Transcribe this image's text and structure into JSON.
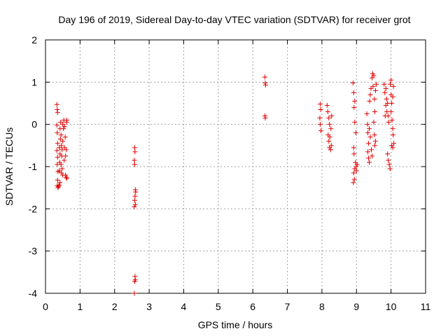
{
  "chart_data": {
    "type": "scatter",
    "title": "Day 196 of 2019, Sidereal Day-to-day VTEC variation (SDTVAR) for receiver grot",
    "xlabel": "GPS time / hours",
    "ylabel": "SDTVAR / TECUs",
    "xlim": [
      0,
      11
    ],
    "ylim": [
      -4,
      2
    ],
    "xticks": [
      0,
      1,
      2,
      3,
      4,
      5,
      6,
      7,
      8,
      9,
      10,
      11
    ],
    "yticks": [
      -4,
      -3,
      -2,
      -1,
      0,
      1,
      2
    ],
    "grid": true,
    "marker": "plus",
    "color": "#e00000",
    "series": [
      {
        "name": "SDTVAR",
        "points": [
          [
            0.33,
            0.47
          ],
          [
            0.34,
            0.35
          ],
          [
            0.35,
            0.28
          ],
          [
            0.33,
            -0.02
          ],
          [
            0.34,
            -0.2
          ],
          [
            0.35,
            -0.45
          ],
          [
            0.33,
            -0.62
          ],
          [
            0.35,
            -0.78
          ],
          [
            0.34,
            -0.95
          ],
          [
            0.36,
            -1.12
          ],
          [
            0.35,
            -1.32
          ],
          [
            0.34,
            -1.45
          ],
          [
            0.36,
            -1.5
          ],
          [
            0.38,
            -1.47
          ],
          [
            0.4,
            -1.44
          ],
          [
            0.42,
            -1.38
          ],
          [
            0.4,
            -1.1
          ],
          [
            0.41,
            -0.9
          ],
          [
            0.42,
            -0.7
          ],
          [
            0.4,
            -0.55
          ],
          [
            0.43,
            -0.35
          ],
          [
            0.42,
            -0.1
          ],
          [
            0.44,
            0.05
          ],
          [
            0.45,
            -0.25
          ],
          [
            0.46,
            -0.5
          ],
          [
            0.47,
            -0.75
          ],
          [
            0.45,
            -0.95
          ],
          [
            0.48,
            -0.6
          ],
          [
            0.5,
            -0.4
          ],
          [
            0.52,
            -0.1
          ],
          [
            0.5,
            0.0
          ],
          [
            0.53,
            0.1
          ],
          [
            0.55,
            -0.05
          ],
          [
            0.57,
            -0.3
          ],
          [
            0.55,
            -0.55
          ],
          [
            0.58,
            -0.75
          ],
          [
            0.6,
            -0.6
          ],
          [
            0.58,
            -1.2
          ],
          [
            0.6,
            -1.25
          ],
          [
            0.62,
            -1.28
          ],
          [
            0.5,
            -1.2
          ],
          [
            0.48,
            -1.05
          ],
          [
            0.46,
            -1.15
          ],
          [
            0.61,
            0.05
          ],
          [
            0.62,
            0.1
          ],
          [
            0.54,
            -0.85
          ],
          [
            2.58,
            -0.55
          ],
          [
            2.59,
            -0.65
          ],
          [
            2.57,
            -0.85
          ],
          [
            2.58,
            -0.95
          ],
          [
            2.6,
            -1.55
          ],
          [
            2.61,
            -1.6
          ],
          [
            2.59,
            -1.7
          ],
          [
            2.58,
            -1.8
          ],
          [
            2.6,
            -1.9
          ],
          [
            2.57,
            -1.95
          ],
          [
            2.59,
            -3.6
          ],
          [
            2.6,
            -3.68
          ],
          [
            2.58,
            -3.72
          ],
          [
            2.57,
            -4.0
          ],
          [
            6.35,
            1.12
          ],
          [
            6.36,
            0.98
          ],
          [
            6.37,
            0.93
          ],
          [
            6.35,
            0.2
          ],
          [
            6.36,
            0.15
          ],
          [
            7.95,
            0.48
          ],
          [
            7.96,
            0.35
          ],
          [
            7.94,
            0.15
          ],
          [
            7.95,
            0.0
          ],
          [
            7.97,
            -0.15
          ],
          [
            8.15,
            0.45
          ],
          [
            8.17,
            0.3
          ],
          [
            8.2,
            0.15
          ],
          [
            8.22,
            0.0
          ],
          [
            8.18,
            -0.25
          ],
          [
            8.2,
            -0.4
          ],
          [
            8.22,
            -0.55
          ],
          [
            8.25,
            -0.6
          ],
          [
            8.23,
            -0.3
          ],
          [
            8.26,
            -0.1
          ],
          [
            8.28,
            0.2
          ],
          [
            8.27,
            -0.5
          ],
          [
            8.9,
            0.98
          ],
          [
            8.92,
            0.75
          ],
          [
            8.95,
            0.55
          ],
          [
            8.93,
            0.4
          ],
          [
            8.95,
            0.05
          ],
          [
            8.92,
            -0.55
          ],
          [
            8.93,
            -0.7
          ],
          [
            8.95,
            -1.05
          ],
          [
            8.92,
            -1.15
          ],
          [
            8.94,
            -1.3
          ],
          [
            8.91,
            -1.38
          ],
          [
            8.97,
            -0.9
          ],
          [
            8.99,
            -1.0
          ],
          [
            9.0,
            -1.1
          ],
          [
            9.02,
            -0.95
          ],
          [
            8.98,
            -0.2
          ],
          [
            9.3,
            0.25
          ],
          [
            9.32,
            0.0
          ],
          [
            9.33,
            -0.2
          ],
          [
            9.35,
            -0.45
          ],
          [
            9.33,
            -0.65
          ],
          [
            9.35,
            -0.8
          ],
          [
            9.37,
            -0.9
          ],
          [
            9.38,
            0.55
          ],
          [
            9.4,
            0.7
          ],
          [
            9.42,
            0.85
          ],
          [
            9.45,
            1.1
          ],
          [
            9.47,
            1.2
          ],
          [
            9.5,
            1.15
          ],
          [
            9.48,
            0.9
          ],
          [
            9.52,
            0.6
          ],
          [
            9.53,
            0.3
          ],
          [
            9.5,
            0.05
          ],
          [
            9.52,
            -0.25
          ],
          [
            9.55,
            -0.4
          ],
          [
            9.53,
            -0.5
          ],
          [
            9.55,
            0.8
          ],
          [
            9.57,
            0.95
          ],
          [
            9.45,
            -0.75
          ],
          [
            9.43,
            -0.6
          ],
          [
            9.4,
            -0.3
          ],
          [
            9.37,
            -0.1
          ],
          [
            9.8,
            0.95
          ],
          [
            9.82,
            0.75
          ],
          [
            9.85,
            0.85
          ],
          [
            9.87,
            0.6
          ],
          [
            9.9,
            0.5
          ],
          [
            9.88,
            0.3
          ],
          [
            9.92,
            0.2
          ],
          [
            9.93,
            0.05
          ],
          [
            9.9,
            -0.7
          ],
          [
            9.92,
            -0.85
          ],
          [
            9.95,
            -0.95
          ],
          [
            9.97,
            -1.05
          ],
          [
            9.98,
            0.95
          ],
          [
            10.0,
            0.7
          ],
          [
            10.02,
            0.5
          ],
          [
            10.0,
            0.3
          ],
          [
            10.03,
            0.1
          ],
          [
            10.05,
            -0.1
          ],
          [
            10.02,
            -0.5
          ],
          [
            10.05,
            -0.55
          ],
          [
            10.08,
            -0.45
          ],
          [
            10.07,
            0.9
          ],
          [
            10.05,
            0.65
          ],
          [
            10.0,
            1.05
          ],
          [
            9.85,
            0.45
          ],
          [
            9.83,
            0.2
          ],
          [
            10.06,
            -0.25
          ]
        ]
      }
    ]
  }
}
